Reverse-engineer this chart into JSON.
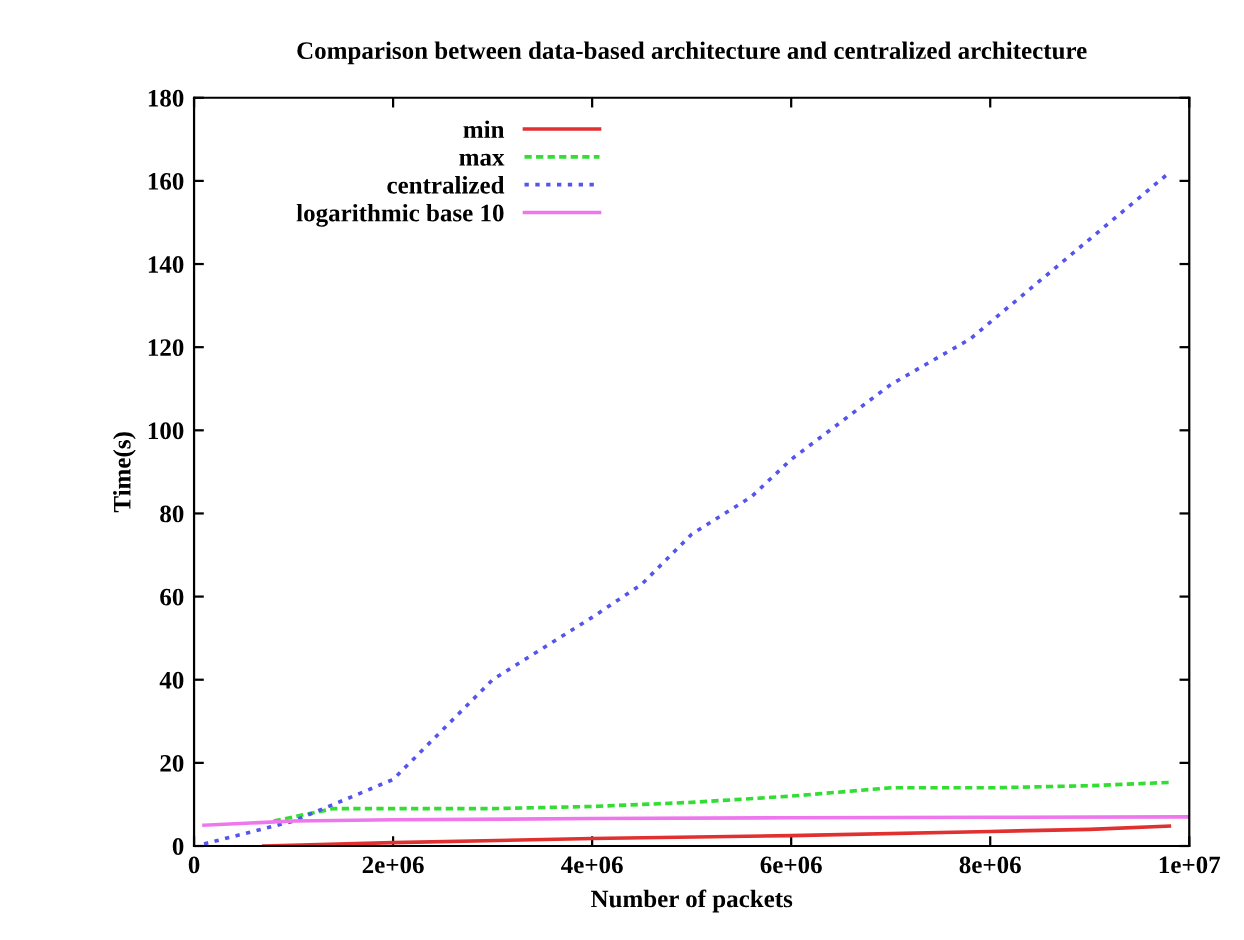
{
  "chart_data": {
    "type": "line",
    "title": "Comparison between data-based architecture and centralized architecture",
    "xlabel": "Number of packets",
    "ylabel": "Time(s)",
    "xlim": [
      0,
      10000000
    ],
    "ylim": [
      0,
      180
    ],
    "xticks": [
      0,
      {
        "value": 2000000,
        "label": "2e+06"
      },
      {
        "value": 4000000,
        "label": "4e+06"
      },
      {
        "value": 6000000,
        "label": "6e+06"
      },
      {
        "value": 8000000,
        "label": "8e+06"
      },
      {
        "value": 10000000,
        "label": "1e+07"
      }
    ],
    "yticks": [
      0,
      20,
      40,
      60,
      80,
      100,
      120,
      140,
      160,
      180
    ],
    "legend": "top left",
    "grid": false,
    "series": [
      {
        "name": "min",
        "color": "#e03030",
        "line_style": "solid",
        "x": [
          700000,
          2000000,
          4000000,
          6000000,
          8000000,
          9000000,
          9800000
        ],
        "values": [
          0,
          0.8,
          1.8,
          2.5,
          3.5,
          4,
          4.8
        ]
      },
      {
        "name": "max",
        "color": "#33dd33",
        "line_style": "dashed",
        "x": [
          800000,
          1000000,
          1400000,
          2000000,
          3000000,
          4000000,
          5000000,
          6000000,
          7000000,
          8000000,
          9000000,
          9800000
        ],
        "values": [
          6,
          7,
          9,
          9,
          9,
          9.5,
          10.5,
          12,
          14,
          14,
          14.5,
          15.3
        ]
      },
      {
        "name": "centralized",
        "color": "#5555ee",
        "line_style": "dotted",
        "x": [
          100000,
          1000000,
          2000000,
          3000000,
          4000000,
          4500000,
          5000000,
          5600000,
          6000000,
          7000000,
          7800000,
          9800000
        ],
        "values": [
          0.5,
          6,
          16,
          40,
          55,
          63,
          75,
          84,
          93,
          111,
          122,
          162
        ]
      },
      {
        "name": "logarithmic base 10",
        "color": "#ee77ee",
        "line_style": "solid",
        "x": [
          100000,
          1000000,
          2000000,
          4000000,
          6000000,
          8000000,
          10000000
        ],
        "values": [
          5,
          6,
          6.3,
          6.6,
          6.8,
          6.9,
          7
        ]
      }
    ]
  }
}
